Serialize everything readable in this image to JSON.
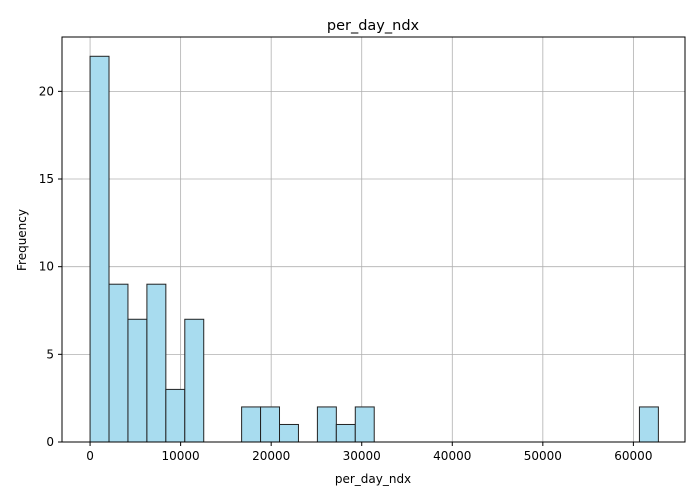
{
  "chart_data": {
    "type": "bar",
    "title": "per_day_ndx",
    "xlabel": "per_day_ndx",
    "ylabel": "Frequency",
    "xlim": [
      -3100,
      65700
    ],
    "ylim": [
      0,
      23.1
    ],
    "xticks": [
      0,
      10000,
      20000,
      30000,
      40000,
      50000,
      60000
    ],
    "yticks": [
      0,
      5,
      10,
      15,
      20
    ],
    "bin_width": 2092,
    "bins": [
      {
        "x0": 0,
        "x1": 2092,
        "count": 22
      },
      {
        "x0": 2092,
        "x1": 4184,
        "count": 9
      },
      {
        "x0": 4184,
        "x1": 6276,
        "count": 7
      },
      {
        "x0": 6276,
        "x1": 8368,
        "count": 9
      },
      {
        "x0": 8368,
        "x1": 10460,
        "count": 3
      },
      {
        "x0": 10460,
        "x1": 12552,
        "count": 7
      },
      {
        "x0": 16736,
        "x1": 18828,
        "count": 2
      },
      {
        "x0": 18828,
        "x1": 20920,
        "count": 2
      },
      {
        "x0": 20920,
        "x1": 23012,
        "count": 1
      },
      {
        "x0": 25104,
        "x1": 27196,
        "count": 2
      },
      {
        "x0": 27196,
        "x1": 29288,
        "count": 1
      },
      {
        "x0": 29288,
        "x1": 31380,
        "count": 2
      },
      {
        "x0": 60668,
        "x1": 62760,
        "count": 2
      }
    ],
    "grid": true,
    "bar_fill": "#a8dcef",
    "bar_edge": "#222222"
  }
}
